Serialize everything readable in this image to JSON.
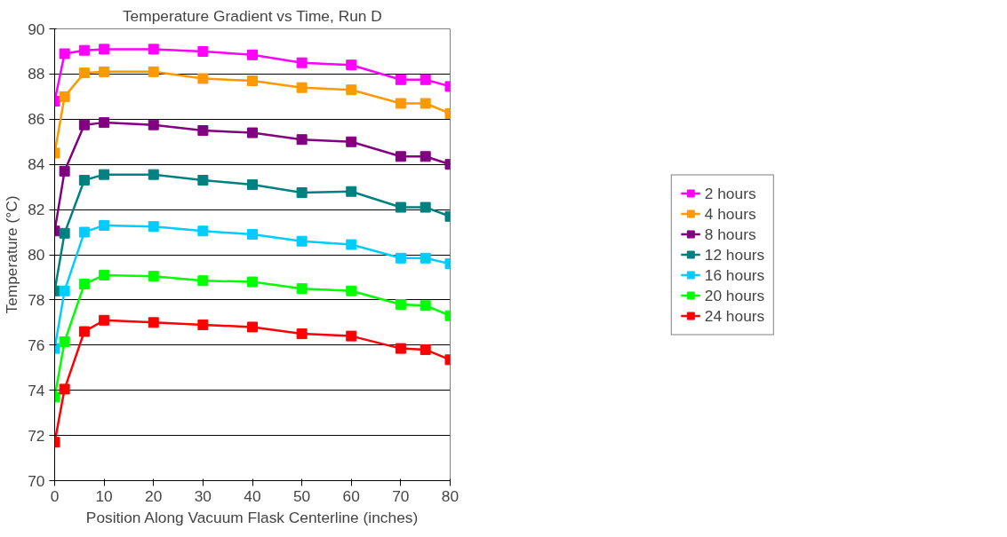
{
  "chart_data": {
    "type": "line",
    "title": "Temperature Gradient vs Time, Run D",
    "xlabel": "Position Along Vacuum Flask Centerline (inches)",
    "ylabel": "Temperature (°C)",
    "x": [
      0,
      2,
      6,
      10,
      20,
      30,
      40,
      50,
      60,
      70,
      75,
      80
    ],
    "xlim": [
      0,
      80
    ],
    "xticks": [
      0,
      10,
      20,
      30,
      40,
      50,
      60,
      70,
      80
    ],
    "ylim": [
      70,
      90
    ],
    "yticks": [
      70,
      72,
      74,
      76,
      78,
      80,
      82,
      84,
      86,
      88,
      90
    ],
    "grid": "y",
    "legend": "right",
    "marker": "square",
    "line_style": "solid",
    "series": [
      {
        "name": "2 hours",
        "color": "#ff00ff",
        "values": [
          86.8,
          88.9,
          89.05,
          89.1,
          89.1,
          89.0,
          88.85,
          88.5,
          88.4,
          87.75,
          87.75,
          87.45
        ]
      },
      {
        "name": "4 hours",
        "color": "#ff9900",
        "values": [
          84.5,
          87.0,
          88.05,
          88.1,
          88.1,
          87.8,
          87.7,
          87.4,
          87.3,
          86.7,
          86.7,
          86.25
        ]
      },
      {
        "name": "8 hours",
        "color": "#800080",
        "values": [
          81.05,
          83.7,
          85.75,
          85.85,
          85.75,
          85.5,
          85.4,
          85.1,
          85.0,
          84.35,
          84.35,
          84.0
        ]
      },
      {
        "name": "12 hours",
        "color": "#008080",
        "values": [
          78.4,
          80.95,
          83.3,
          83.55,
          83.55,
          83.3,
          83.1,
          82.75,
          82.8,
          82.1,
          82.1,
          81.7
        ]
      },
      {
        "name": "16 hours",
        "color": "#00ccff",
        "values": [
          75.85,
          78.4,
          81.0,
          81.3,
          81.25,
          81.05,
          80.9,
          80.6,
          80.45,
          79.85,
          79.85,
          79.6
        ]
      },
      {
        "name": "20 hours",
        "color": "#00ff00",
        "values": [
          73.7,
          76.15,
          78.7,
          79.1,
          79.05,
          78.85,
          78.8,
          78.5,
          78.4,
          77.8,
          77.75,
          77.3
        ]
      },
      {
        "name": "24 hours",
        "color": "#ff0000",
        "values": [
          71.7,
          74.05,
          76.6,
          77.1,
          77.0,
          76.9,
          76.8,
          76.5,
          76.4,
          75.85,
          75.8,
          75.35
        ]
      }
    ]
  }
}
